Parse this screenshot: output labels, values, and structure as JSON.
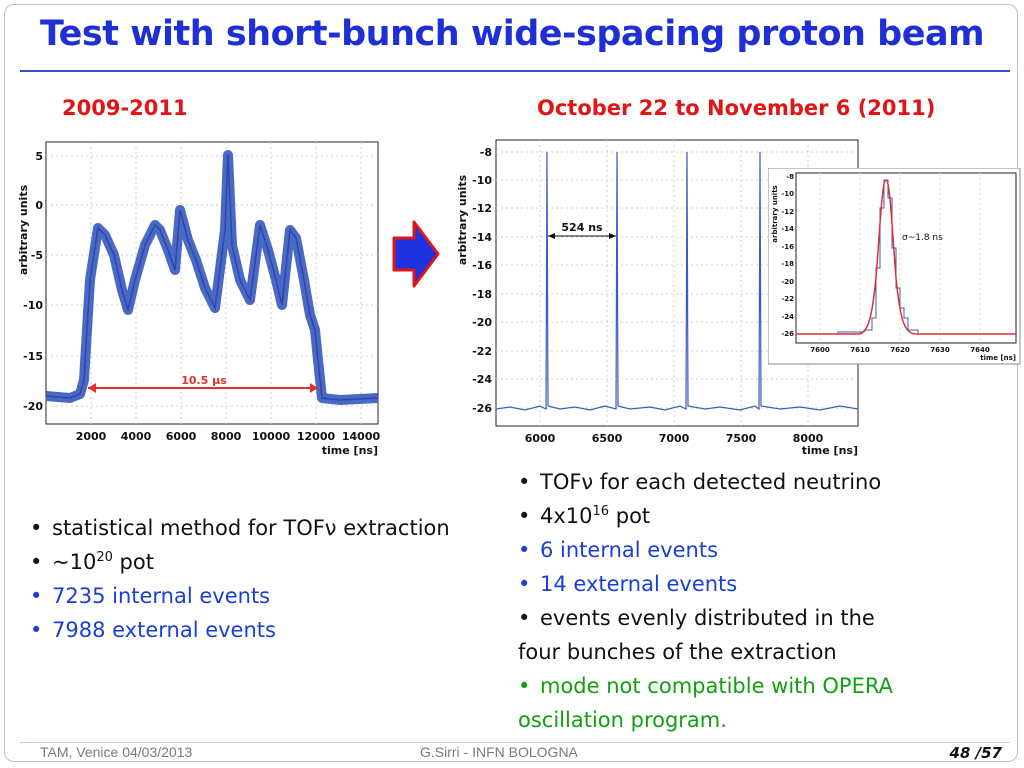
{
  "slide": {
    "title": "Test with short-bunch wide-spacing proton beam",
    "left_heading": "2009-2011",
    "right_heading": "October 22 to November 6 (2011)"
  },
  "left_plot": {
    "y_axis_label": "arbitrary units",
    "x_axis_label": "time [ns]",
    "x_ticks": [
      "2000",
      "4000",
      "6000",
      "8000",
      "10000",
      "12000",
      "14000"
    ],
    "y_ticks": [
      "5",
      "0",
      "-5",
      "-10",
      "-15",
      "-20"
    ],
    "annotation": "10.5 µs"
  },
  "right_plot": {
    "y_axis_label": "arbitrary units",
    "x_axis_label": "time [ns]",
    "x_ticks": [
      "6000",
      "6500",
      "7000",
      "7500",
      "8000"
    ],
    "y_ticks": [
      "-8",
      "-10",
      "-12",
      "-14",
      "-16",
      "-18",
      "-20",
      "-22",
      "-24",
      "-26"
    ],
    "annotation": "524 ns"
  },
  "inset_plot": {
    "y_axis_label": "arbitrary units",
    "x_axis_label": "time [ns]",
    "x_ticks": [
      "7600",
      "7610",
      "7620",
      "7630",
      "7640"
    ],
    "y_ticks": [
      "-8",
      "-10",
      "-12",
      "-14",
      "-16",
      "-18",
      "-20",
      "-22",
      "-24",
      "-26"
    ],
    "annotation": "σ~1.8 ns"
  },
  "left_bullets": [
    {
      "text": "statistical method for TOFν extraction"
    },
    {
      "text": "~10",
      "sup": "20",
      "tail": " pot"
    },
    {
      "text": "7235 internal events"
    },
    {
      "text": "7988 external events"
    }
  ],
  "right_bullets": [
    {
      "text": "TOFν for each detected neutrino"
    },
    {
      "text": "4x10",
      "sup": "16",
      "tail": " pot"
    },
    {
      "text": "6 internal events"
    },
    {
      "text": "14 external events"
    },
    {
      "text": "events evenly distributed in the"
    },
    {
      "text": "four bunches of the extraction"
    },
    {
      "text": "mode not compatible with OPERA"
    },
    {
      "text": "oscillation program."
    }
  ],
  "bullet_symbol": "•",
  "footer": {
    "left": "TAM, Venice 04/03/2013",
    "center": "G.Sirri - INFN BOLOGNA",
    "page": "48 /57"
  },
  "colors": {
    "title": "#1f2fd6",
    "heading": "#e01515",
    "accent_blue": "#1b3ed6",
    "accent_green": "#10a010",
    "signal": "#4a69c6",
    "fit": "#e03030"
  }
}
